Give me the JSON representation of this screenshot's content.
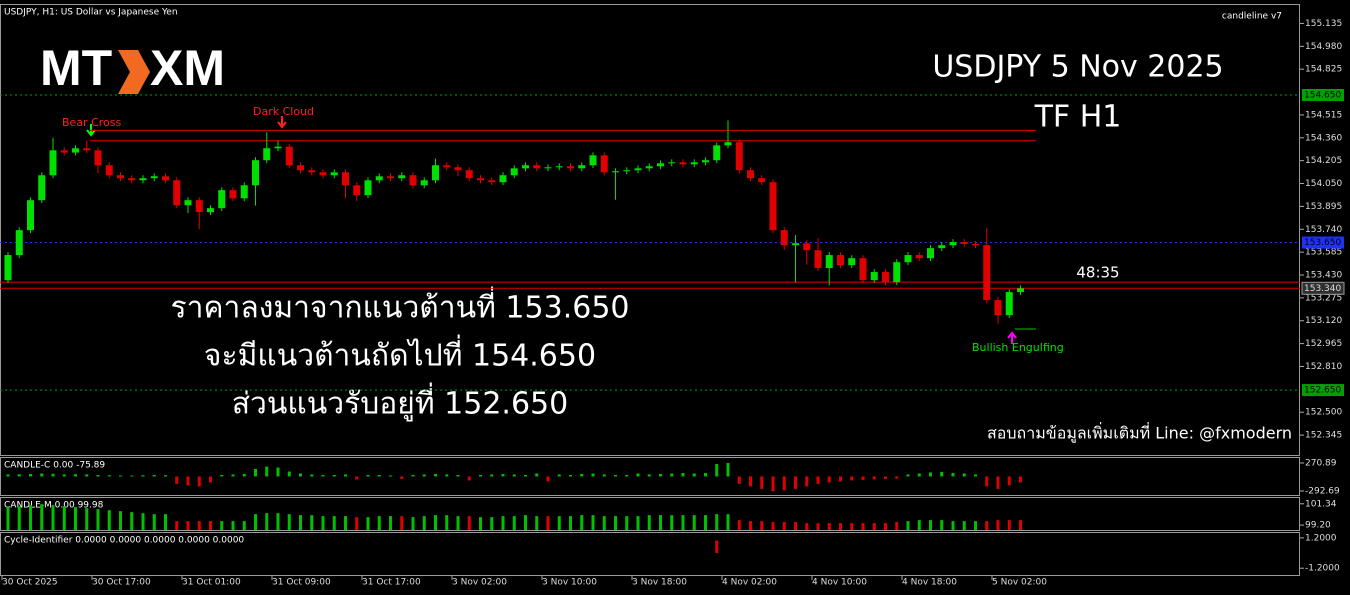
{
  "header": {
    "symbol": "USDJPY, H1:  US Dollar vs Japanese Yen",
    "indicator": "candleline v7"
  },
  "logo": {
    "left": "MT",
    "right": "XM"
  },
  "overlay": {
    "title": "USDJPY 5 Nov 2025",
    "timeframe": "TF H1",
    "analysis": [
      "ราคาลงมาจากแนวต้านที่ 153.650",
      "จะมีแนวต้านถัดไปที่ 154.650",
      "ส่วนแนวรับอยู่ที่ 152.650"
    ],
    "contact": "สอบถามข้อมูลเพิ่มเติมที่ Line: @fxmodern",
    "countdown": "48:35"
  },
  "chart_data": {
    "type": "candlestick",
    "categories": [
      "30 Oct 2025",
      null,
      null,
      null,
      null,
      null,
      null,
      null,
      "30 Oct 17:00",
      null,
      null,
      null,
      null,
      null,
      null,
      null,
      "31 Oct 01:00",
      null,
      null,
      null,
      null,
      null,
      null,
      null,
      "31 Oct 09:00",
      null,
      null,
      null,
      null,
      null,
      null,
      null,
      "31 Oct 17:00",
      null,
      null,
      null,
      null,
      null,
      null,
      null,
      "3 Nov 02:00",
      null,
      null,
      null,
      null,
      null,
      null,
      null,
      "3 Nov 10:00",
      null,
      null,
      null,
      null,
      null,
      null,
      null,
      "3 Nov 18:00",
      null,
      null,
      null,
      null,
      null,
      null,
      null,
      "4 Nov 02:00",
      null,
      null,
      null,
      null,
      null,
      null,
      null,
      "4 Nov 10:00",
      null,
      null,
      null,
      null,
      null,
      null,
      null,
      "4 Nov 18:00",
      null,
      null,
      null,
      null,
      null,
      null,
      null,
      "5 Nov 02:00",
      null,
      null
    ],
    "open": [
      153.395,
      153.565,
      153.734,
      153.937,
      154.106,
      154.275,
      154.26,
      154.289,
      154.275,
      154.174,
      154.106,
      154.086,
      154.072,
      154.086,
      154.099,
      154.072,
      153.903,
      153.937,
      153.856,
      153.883,
      154.005,
      153.95,
      154.038,
      154.208,
      154.289,
      154.3,
      154.174,
      154.14,
      154.126,
      154.106,
      154.126,
      154.038,
      153.971,
      154.072,
      154.099,
      154.086,
      154.106,
      154.038,
      154.072,
      154.174,
      154.16,
      154.14,
      154.086,
      154.072,
      154.059,
      154.106,
      154.153,
      154.174,
      154.153,
      154.16,
      154.167,
      154.153,
      154.174,
      154.241,
      154.126,
      154.133,
      154.14,
      154.153,
      154.167,
      154.187,
      154.194,
      154.18,
      154.194,
      154.208,
      154.309,
      154.33,
      154.14,
      154.086,
      154.059,
      153.734,
      153.632,
      153.645,
      153.598,
      153.477,
      153.565,
      153.497,
      153.544,
      153.395,
      153.45,
      153.382,
      153.517,
      153.565,
      153.544,
      153.612,
      153.632,
      153.653,
      153.64,
      153.632,
      153.26,
      153.158,
      153.314
    ],
    "high": [
      153.585,
      153.754,
      153.957,
      154.126,
      154.36,
      154.295,
      154.309,
      154.34,
      154.295,
      154.194,
      154.126,
      154.106,
      154.106,
      154.119,
      154.119,
      154.092,
      153.957,
      153.957,
      153.903,
      154.025,
      154.025,
      154.058,
      154.228,
      154.4,
      154.34,
      154.32,
      154.194,
      154.16,
      154.146,
      154.146,
      154.146,
      154.058,
      154.092,
      154.119,
      154.119,
      154.126,
      154.126,
      154.092,
      154.22,
      154.194,
      154.18,
      154.16,
      154.106,
      154.092,
      154.126,
      154.173,
      154.194,
      154.194,
      154.18,
      154.187,
      154.187,
      154.194,
      154.261,
      154.261,
      154.153,
      154.16,
      154.173,
      154.187,
      154.207,
      154.214,
      154.214,
      154.214,
      154.228,
      154.329,
      154.478,
      154.35,
      154.16,
      154.106,
      154.079,
      153.754,
      153.7,
      153.665,
      153.68,
      153.585,
      153.585,
      153.564,
      153.564,
      153.47,
      153.47,
      153.537,
      153.585,
      153.585,
      153.632,
      153.652,
      153.673,
      153.673,
      153.66,
      153.75,
      153.28,
      153.334,
      153.36
    ],
    "low": [
      153.375,
      153.545,
      153.714,
      153.917,
      154.086,
      154.24,
      154.24,
      154.255,
      154.12,
      154.086,
      154.066,
      154.052,
      154.052,
      154.066,
      154.052,
      153.883,
      153.85,
      153.74,
      153.836,
      153.863,
      153.93,
      153.93,
      153.9,
      154.188,
      154.269,
      154.154,
      154.12,
      154.106,
      154.086,
      154.086,
      153.95,
      153.93,
      153.951,
      154.052,
      154.066,
      154.066,
      154.018,
      154.018,
      154.052,
      154.14,
      154.1,
      154.066,
      154.052,
      154.039,
      154.039,
      154.086,
      154.133,
      154.133,
      154.133,
      154.14,
      154.133,
      154.133,
      154.154,
      154.106,
      153.94,
      154.113,
      154.12,
      154.133,
      154.147,
      154.167,
      154.16,
      154.16,
      154.174,
      154.188,
      154.289,
      154.12,
      154.066,
      154.039,
      153.714,
      153.6,
      153.38,
      153.5,
      153.457,
      153.36,
      153.477,
      153.477,
      153.375,
      153.375,
      153.362,
      153.362,
      153.497,
      153.524,
      153.524,
      153.592,
      153.612,
      153.62,
      153.612,
      153.24,
      153.1,
      153.138,
      153.294
    ],
    "close": [
      153.565,
      153.734,
      153.937,
      154.106,
      154.275,
      154.26,
      154.289,
      154.275,
      154.174,
      154.106,
      154.086,
      154.072,
      154.086,
      154.099,
      154.072,
      153.903,
      153.937,
      153.856,
      153.883,
      154.005,
      153.95,
      154.038,
      154.208,
      154.289,
      154.3,
      154.174,
      154.14,
      154.126,
      154.106,
      154.126,
      154.038,
      153.971,
      154.072,
      154.099,
      154.086,
      154.106,
      154.038,
      154.072,
      154.174,
      154.16,
      154.14,
      154.086,
      154.072,
      154.059,
      154.106,
      154.153,
      154.174,
      154.153,
      154.16,
      154.167,
      154.153,
      154.174,
      154.241,
      154.126,
      154.133,
      154.14,
      154.153,
      154.167,
      154.187,
      154.194,
      154.18,
      154.194,
      154.208,
      154.309,
      154.33,
      154.14,
      154.086,
      154.059,
      153.734,
      153.632,
      153.645,
      153.598,
      153.477,
      153.565,
      153.497,
      153.544,
      153.395,
      153.45,
      153.382,
      153.517,
      153.565,
      153.544,
      153.612,
      153.632,
      153.653,
      153.64,
      153.632,
      153.26,
      153.158,
      153.314,
      153.34
    ],
    "colors": {
      "up": "#00e000",
      "down": "#e00000"
    },
    "ylim": [
      152.21,
      155.26
    ],
    "yticks": [
      155.135,
      {
        "value": 154.98,
        "label": "154.980"
      },
      154.825,
      154.515,
      {
        "value": 154.36,
        "label": "154.360"
      },
      154.205,
      {
        "value": 154.05,
        "label": "154.050"
      },
      153.895,
      {
        "value": 153.74,
        "label": "153.740"
      },
      153.585,
      {
        "value": 153.43,
        "label": "153.430"
      },
      153.275,
      {
        "value": 153.12,
        "label": "153.120"
      },
      152.965,
      {
        "value": 152.81,
        "label": "152.810"
      },
      {
        "value": 152.5,
        "label": "152.500"
      },
      152.345
    ],
    "levels": [
      {
        "value": 154.65,
        "label": "154.650",
        "color": "#00a000"
      },
      {
        "value": 153.65,
        "label": "153.650",
        "color": "#2030ff"
      },
      {
        "value": 152.65,
        "label": "152.650",
        "color": "#00a000"
      }
    ],
    "lines": [
      153.382
    ],
    "resistance": [
      154.41,
      154.34
    ],
    "current": {
      "value": 153.34,
      "label": "153.340"
    },
    "signals": [
      "Bear Cross",
      "Dark Cloud",
      "Bullish Engulfing"
    ]
  },
  "indicators": [
    {
      "type": "bar",
      "title": "CANDLE-C 0.00 -75.89",
      "colors": {
        "up": "#00c000",
        "down": "#e00000"
      },
      "ylim": [
        -373,
        371
      ],
      "yticks": [
        270.89,
        -292.69
      ],
      "values": [
        40,
        45,
        50,
        60,
        55,
        40,
        45,
        40,
        30,
        25,
        20,
        20,
        25,
        30,
        25,
        -150,
        -180,
        -200,
        -120,
        30,
        40,
        50,
        150,
        200,
        180,
        100,
        60,
        40,
        30,
        30,
        40,
        -60,
        30,
        30,
        20,
        -50,
        30,
        40,
        50,
        40,
        30,
        -80,
        30,
        40,
        50,
        40,
        30,
        60,
        -100,
        40,
        30,
        50,
        60,
        40,
        30,
        30,
        60,
        40,
        50,
        60,
        70,
        60,
        70,
        250,
        270,
        -150,
        -200,
        -250,
        -300,
        -280,
        -250,
        -200,
        -150,
        -120,
        -100,
        -80,
        -70,
        -60,
        -50,
        -40,
        40,
        60,
        80,
        90,
        70,
        60,
        40,
        -200,
        -250,
        -180,
        -120
      ]
    },
    {
      "type": "bar",
      "title": "CANDLE-M 0.00 99.98",
      "colors": {
        "up": "#00c000",
        "down": "#e00000"
      },
      "ylim": [
        98.71,
        101.92
      ],
      "yticks": [
        101.34,
        {
          "value": 99.2,
          "label": "99.20"
        }
      ],
      "values": [
        101.0,
        101.1,
        101.2,
        101.3,
        101.2,
        101.1,
        101.0,
        100.9,
        100.8,
        100.7,
        100.6,
        100.5,
        100.4,
        100.3,
        100.3,
        99.6,
        99.6,
        99.6,
        99.6,
        99.6,
        99.6,
        99.6,
        100.3,
        100.4,
        100.4,
        100.3,
        100.2,
        100.2,
        100.1,
        100.1,
        100.1,
        100.0,
        100.0,
        100.1,
        100.1,
        100.1,
        100.0,
        100.1,
        100.2,
        100.2,
        100.1,
        100.1,
        100.0,
        100.0,
        100.1,
        100.1,
        100.2,
        100.1,
        100.1,
        100.1,
        100.1,
        100.2,
        100.2,
        100.1,
        100.1,
        100.1,
        100.1,
        100.2,
        100.2,
        100.2,
        100.2,
        100.2,
        100.2,
        100.3,
        100.3,
        99.7,
        99.6,
        99.6,
        99.5,
        99.5,
        99.5,
        99.4,
        99.4,
        99.4,
        99.4,
        99.4,
        99.4,
        99.4,
        99.4,
        99.5,
        99.6,
        99.7,
        99.7,
        99.7,
        99.6,
        99.6,
        99.6,
        99.6,
        99.7,
        99.7,
        99.7
      ]
    },
    {
      "type": "bar",
      "title": "Cycle-Identifier 0.0000 0.0000 0.0000 0.0000 0.0000",
      "color": "#e00000",
      "ylim": [
        -1.74,
        1.59
      ],
      "yticks": [
        {
          "value": 1.2,
          "label": "1.2000"
        },
        {
          "value": -1.2,
          "label": "-1.2000"
        }
      ],
      "values": [
        0,
        0,
        0,
        0,
        0,
        0,
        0,
        0,
        0,
        0,
        0,
        0,
        0,
        0,
        0,
        0,
        0,
        0,
        0,
        0,
        0,
        0,
        0,
        0,
        0,
        0,
        0,
        0,
        0,
        0,
        0,
        0,
        0,
        0,
        0,
        0,
        0,
        0,
        0,
        0,
        0,
        0,
        0,
        0,
        0,
        0,
        0,
        0,
        0,
        0,
        0,
        0,
        0,
        0,
        0,
        0,
        0,
        0,
        0,
        0,
        0,
        0,
        0,
        1,
        0,
        0,
        0,
        0,
        0,
        0,
        0,
        0,
        0,
        0,
        0,
        0,
        0,
        0,
        0,
        0,
        0,
        0,
        0,
        0,
        0,
        0,
        0,
        0,
        0,
        0,
        0
      ]
    }
  ]
}
